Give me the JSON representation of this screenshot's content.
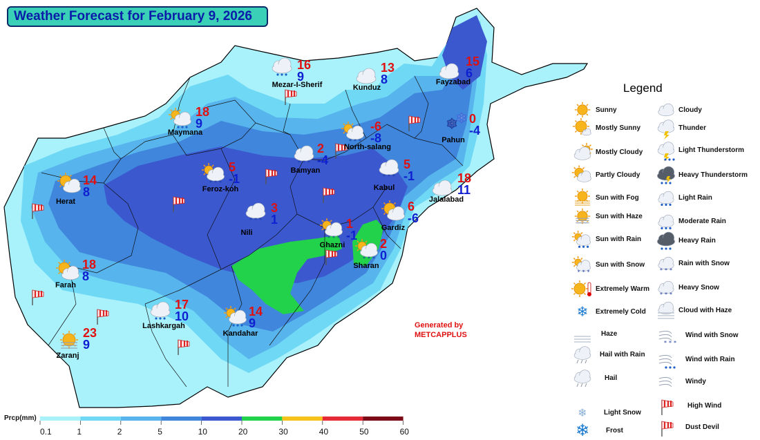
{
  "title": "Weather Forecast for February 9, 2026",
  "credit": [
    "Generated by",
    "METCAPPLUS"
  ],
  "legend": {
    "title": "Legend",
    "items_left": [
      "Sunny",
      "Mostly Sunny",
      "Mostly Cloudy",
      "Partly Cloudy",
      "Sun with Fog",
      "Sun with Haze",
      "Sun with Rain",
      "Sun with Snow",
      "Extremely Warm",
      "Extremely Cold",
      "Haze",
      "Hail with Rain",
      "Hail",
      "Light Snow",
      "Frost"
    ],
    "items_right": [
      "Cloudy",
      "Thunder",
      "Light Thunderstorm",
      "Heavy Thunderstorm",
      "Light Rain",
      "Moderate Rain",
      "Heavy Rain",
      "Rain with Snow",
      "Heavy Snow",
      "Cloud with Haze",
      "Wind with Snow",
      "Wind with Rain",
      "Windy",
      "High Wind",
      "Dust Devil"
    ]
  },
  "colorbar": {
    "label": "Prcp(mm)",
    "ticks": [
      "0.1",
      "1",
      "2",
      "5",
      "10",
      "20",
      "30",
      "40",
      "50",
      "60"
    ],
    "colors": [
      "#a9f2fb",
      "#6fd8f5",
      "#58b4ec",
      "#3f86dc",
      "#3b58cf",
      "#22d24a",
      "#f6c31c",
      "#e62a38",
      "#7d0a18"
    ]
  },
  "cities": [
    {
      "name": "Mezar-I-Sherif",
      "max": "16",
      "min": "9",
      "icon": "moderate-rain-icon"
    },
    {
      "name": "Kunduz",
      "max": "13",
      "min": "8",
      "icon": "cloudy-icon"
    },
    {
      "name": "Fayzabad",
      "max": "15",
      "min": "6",
      "icon": "cloudy-icon"
    },
    {
      "name": "Maymana",
      "max": "18",
      "min": "9",
      "icon": "sun-with-rain-icon"
    },
    {
      "name": "North-salang",
      "max": "-6",
      "min": "-8",
      "icon": "sun-with-snow-icon"
    },
    {
      "name": "Pahun",
      "max": "0",
      "min": "-4",
      "icon": "extremely-cold-icon"
    },
    {
      "name": "Bamyan",
      "max": "2",
      "min": "-4",
      "icon": "rain-with-snow-icon"
    },
    {
      "name": "Kabul",
      "max": "5",
      "min": "-1",
      "icon": "heavy-snow-icon"
    },
    {
      "name": "Jalalabad",
      "max": "18",
      "min": "11",
      "icon": "cloudy-icon"
    },
    {
      "name": "Herat",
      "max": "14",
      "min": "8",
      "icon": "partly-cloudy-icon"
    },
    {
      "name": "Feroz-koh",
      "max": "5",
      "min": "-1",
      "icon": "sun-with-snow-icon"
    },
    {
      "name": "Gardiz",
      "max": "6",
      "min": "-6",
      "icon": "partly-cloudy-icon"
    },
    {
      "name": "Nili",
      "max": "3",
      "min": "1",
      "icon": "rain-with-snow-icon"
    },
    {
      "name": "Ghazni",
      "max": "1",
      "min": "-1",
      "icon": "sun-with-snow-icon"
    },
    {
      "name": "Sharan",
      "max": "2",
      "min": "0",
      "icon": "sun-with-snow-icon"
    },
    {
      "name": "Farah",
      "max": "18",
      "min": "8",
      "icon": "partly-cloudy-icon"
    },
    {
      "name": "Lashkargah",
      "max": "17",
      "min": "10",
      "icon": "light-rain-icon"
    },
    {
      "name": "Kandahar",
      "max": "14",
      "min": "9",
      "icon": "sun-with-rain-icon"
    },
    {
      "name": "Zaranj",
      "max": "23",
      "min": "9",
      "icon": "sun-with-haze-icon"
    }
  ]
}
